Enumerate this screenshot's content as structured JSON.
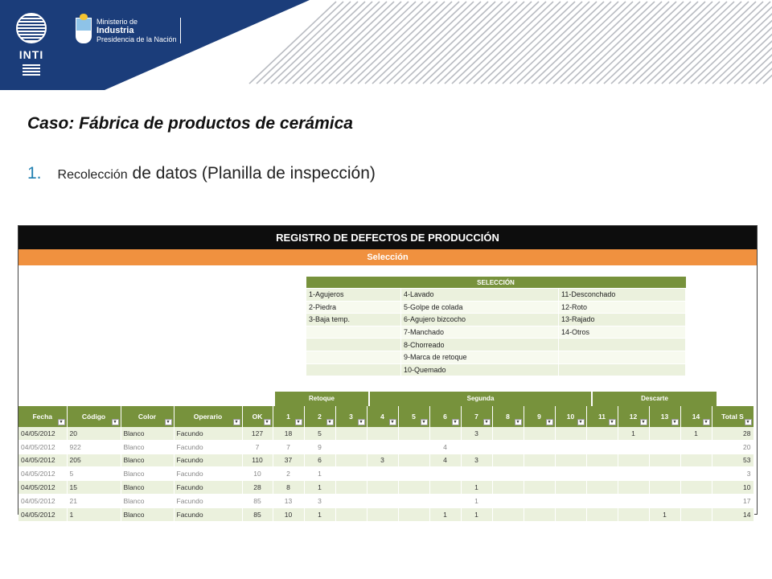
{
  "header": {
    "inti_label": "INTI",
    "ministry_line1": "Ministerio de",
    "ministry_line2": "Industria",
    "ministry_line3": "Presidencia de la Nación"
  },
  "case_title": "Caso: Fábrica de productos de cerámica",
  "step": {
    "number": "1.",
    "word": "Recolección",
    "rest": "de datos (Planilla de inspección)"
  },
  "sheet": {
    "title": "REGISTRO DE DEFECTOS DE PRODUCCIÓN",
    "subtitle": "Selección",
    "selection": {
      "header": "SELECCIÓN",
      "rows": [
        [
          "1-Agujeros",
          "4-Lavado",
          "11-Desconchado"
        ],
        [
          "2-Piedra",
          "5-Golpe de colada",
          "12-Roto"
        ],
        [
          "3-Baja temp.",
          "6-Agujero bizcocho",
          "13-Rajado"
        ],
        [
          "",
          "7-Manchado",
          "14-Otros"
        ],
        [
          "",
          "8-Chorreado",
          ""
        ],
        [
          "",
          "9-Marca de retoque",
          ""
        ],
        [
          "",
          "10-Quemado",
          ""
        ]
      ]
    },
    "groups": {
      "retoque": "Retoque",
      "segunda": "Segunda",
      "descarte": "Descarte"
    },
    "columns": [
      "Fecha",
      "Código",
      "Color",
      "Operario",
      "OK",
      "1",
      "2",
      "3",
      "4",
      "5",
      "6",
      "7",
      "8",
      "9",
      "10",
      "11",
      "12",
      "13",
      "14",
      "Total S"
    ],
    "rows": [
      [
        "04/05/2012",
        "20",
        "Blanco",
        "Facundo",
        "127",
        "18",
        "5",
        "",
        "",
        "",
        "",
        "3",
        "",
        "",
        "",
        "",
        "1",
        "",
        "1",
        "28"
      ],
      [
        "04/05/2012",
        "922",
        "Blanco",
        "Facundo",
        "7",
        "7",
        "9",
        "",
        "",
        "",
        "4",
        "",
        "",
        "",
        "",
        "",
        "",
        "",
        "",
        "20"
      ],
      [
        "04/05/2012",
        "205",
        "Blanco",
        "Facundo",
        "110",
        "37",
        "6",
        "",
        "3",
        "",
        "4",
        "3",
        "",
        "",
        "",
        "",
        "",
        "",
        "",
        "53"
      ],
      [
        "04/05/2012",
        "5",
        "Blanco",
        "Facundo",
        "10",
        "2",
        "1",
        "",
        "",
        "",
        "",
        "",
        "",
        "",
        "",
        "",
        "",
        "",
        "",
        "3"
      ],
      [
        "04/05/2012",
        "15",
        "Blanco",
        "Facundo",
        "28",
        "8",
        "1",
        "",
        "",
        "",
        "",
        "1",
        "",
        "",
        "",
        "",
        "",
        "",
        "",
        "10"
      ],
      [
        "04/05/2012",
        "21",
        "Blanco",
        "Facundo",
        "85",
        "13",
        "3",
        "",
        "",
        "",
        "",
        "1",
        "",
        "",
        "",
        "",
        "",
        "",
        "",
        "17"
      ],
      [
        "04/05/2012",
        "1",
        "Blanco",
        "Facundo",
        "85",
        "10",
        "1",
        "",
        "",
        "",
        "1",
        "1",
        "",
        "",
        "",
        "",
        "",
        "1",
        "",
        "14"
      ]
    ]
  },
  "colors": {
    "navy": "#1b3d7a",
    "green": "#77923c",
    "orange": "#f0913f",
    "total_red": "#c0392b"
  }
}
